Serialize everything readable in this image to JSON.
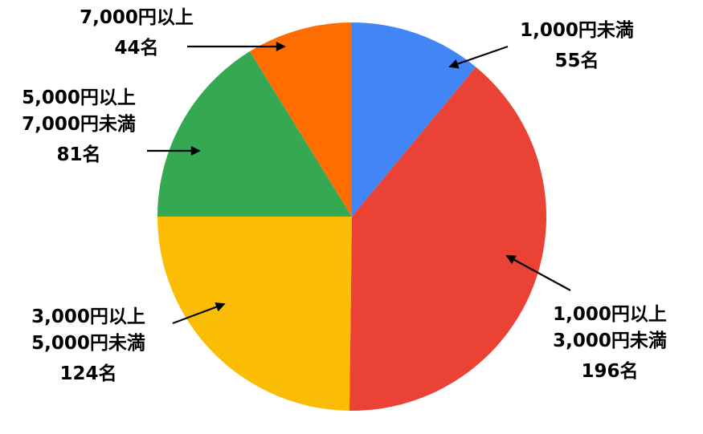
{
  "chart_data": {
    "type": "pie",
    "title": "",
    "total": 500,
    "unit_suffix": "名",
    "start_angle_deg": -90,
    "direction": "clockwise",
    "background_color": "#ffffff",
    "label_text_color": "#000000",
    "arrow_color": "#000000",
    "segments": [
      {
        "name": "under-1000-yen",
        "label_lines": [
          "1,000円未満"
        ],
        "count": 55,
        "count_label": "55名",
        "color": "#4285F4"
      },
      {
        "name": "1000-to-3000-yen",
        "label_lines": [
          "1,000円以上",
          "3,000円未満"
        ],
        "count": 196,
        "count_label": "196名",
        "color": "#EA4335"
      },
      {
        "name": "3000-to-5000-yen",
        "label_lines": [
          "3,000円以上",
          "5,000円未満"
        ],
        "count": 124,
        "count_label": "124名",
        "color": "#FBBC04"
      },
      {
        "name": "5000-to-7000-yen",
        "label_lines": [
          "5,000円以上",
          "7,000円未満"
        ],
        "count": 81,
        "count_label": "81名",
        "color": "#34A853"
      },
      {
        "name": "over-7000-yen",
        "label_lines": [
          "7,000円以上"
        ],
        "count": 44,
        "count_label": "44名",
        "color": "#FF6D01"
      }
    ]
  }
}
